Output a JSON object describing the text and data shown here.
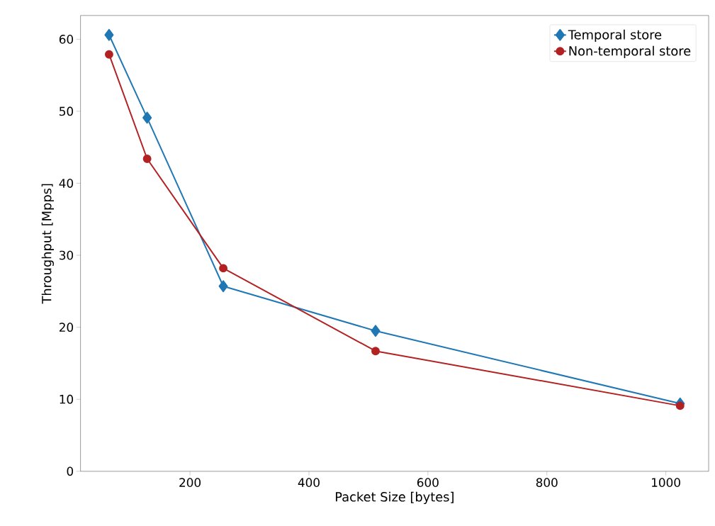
{
  "chart_data": {
    "type": "line",
    "xlabel": "Packet Size [bytes]",
    "ylabel": "Throughput [Mpps]",
    "x": [
      64,
      128,
      256,
      512,
      1024
    ],
    "series": [
      {
        "name": "Temporal store",
        "color": "#1f77b4",
        "marker": "diamond",
        "values": [
          60.6,
          49.1,
          25.7,
          19.5,
          9.4
        ]
      },
      {
        "name": "Non-temporal store",
        "color": "#b22222",
        "marker": "circle",
        "values": [
          57.9,
          43.4,
          28.2,
          16.7,
          9.1
        ]
      }
    ],
    "xlim": [
      16,
      1072
    ],
    "ylim": [
      0,
      63.3
    ],
    "xticks": [
      200,
      400,
      600,
      800,
      1000
    ],
    "yticks": [
      0,
      10,
      20,
      30,
      40,
      50,
      60
    ],
    "legend": "top right",
    "grid": false,
    "line_style": "solid"
  }
}
